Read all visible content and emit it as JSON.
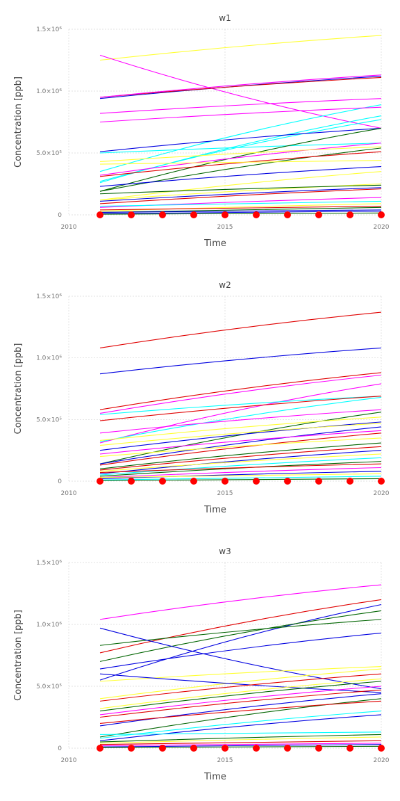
{
  "colors": [
    "#0000e0",
    "#ffff33",
    "#ff00ff",
    "#00ffff",
    "#006400",
    "#e00000"
  ],
  "marker_color": "#ff0000",
  "chart_data": [
    {
      "type": "line",
      "title": "w1",
      "xlabel": "Time",
      "ylabel": "Concentration [ppb]",
      "xlim": [
        2010,
        2020
      ],
      "ylim": [
        0,
        1500000
      ],
      "x_ticks": [
        2010,
        2015,
        2020
      ],
      "y_ticks": [
        {
          "value": 0,
          "label": "0"
        },
        {
          "value": 500000,
          "label": "5.0×10⁵"
        },
        {
          "value": 1000000,
          "label": "1.0×10⁶"
        },
        {
          "value": 1500000,
          "label": "1.5×10⁶"
        }
      ],
      "markers": {
        "x": [
          2011,
          2012,
          2013,
          2014,
          2015,
          2016,
          2017,
          2018,
          2019,
          2020
        ],
        "y": 0
      },
      "series": [
        {
          "color_index": 1,
          "values": [
            1250000,
            1450000
          ]
        },
        {
          "color_index": 2,
          "values": [
            1290000,
            700000
          ]
        },
        {
          "color_index": 0,
          "values": [
            940000,
            1120000
          ]
        },
        {
          "color_index": 5,
          "values": [
            950000,
            1110000
          ]
        },
        {
          "color_index": 2,
          "values": [
            950000,
            1130000
          ]
        },
        {
          "color_index": 2,
          "values": [
            820000,
            940000
          ]
        },
        {
          "color_index": 3,
          "values": [
            350000,
            890000
          ]
        },
        {
          "color_index": 2,
          "values": [
            750000,
            870000
          ]
        },
        {
          "color_index": 3,
          "values": [
            260000,
            800000
          ]
        },
        {
          "color_index": 3,
          "values": [
            270000,
            770000
          ]
        },
        {
          "color_index": 0,
          "values": [
            510000,
            700000
          ]
        },
        {
          "color_index": 3,
          "values": [
            500000,
            580000
          ]
        },
        {
          "color_index": 4,
          "values": [
            190000,
            700000
          ]
        },
        {
          "color_index": 2,
          "values": [
            320000,
            580000
          ]
        },
        {
          "color_index": 1,
          "values": [
            430000,
            550000
          ]
        },
        {
          "color_index": 4,
          "values": [
            190000,
            540000
          ]
        },
        {
          "color_index": 5,
          "values": [
            310000,
            510000
          ]
        },
        {
          "color_index": 1,
          "values": [
            410000,
            440000
          ]
        },
        {
          "color_index": 0,
          "values": [
            230000,
            390000
          ]
        },
        {
          "color_index": 1,
          "values": [
            120000,
            350000
          ]
        },
        {
          "color_index": 1,
          "values": [
            120000,
            250000
          ]
        },
        {
          "color_index": 4,
          "values": [
            170000,
            240000
          ]
        },
        {
          "color_index": 5,
          "values": [
            90000,
            210000
          ]
        },
        {
          "color_index": 0,
          "values": [
            110000,
            220000
          ]
        },
        {
          "color_index": 2,
          "values": [
            60000,
            140000
          ]
        },
        {
          "color_index": 3,
          "values": [
            70000,
            110000
          ]
        },
        {
          "color_index": 1,
          "values": [
            30000,
            90000
          ]
        },
        {
          "color_index": 4,
          "values": [
            20000,
            60000
          ]
        },
        {
          "color_index": 5,
          "values": [
            40000,
            70000
          ]
        },
        {
          "color_index": 0,
          "values": [
            20000,
            40000
          ]
        },
        {
          "color_index": 0,
          "values": [
            10000,
            30000
          ]
        },
        {
          "color_index": 4,
          "values": [
            5000,
            15000
          ]
        }
      ]
    },
    {
      "type": "line",
      "title": "w2",
      "xlabel": "Time",
      "ylabel": "Concentration [ppb]",
      "xlim": [
        2010,
        2020
      ],
      "ylim": [
        0,
        1500000
      ],
      "x_ticks": [
        2010,
        2015,
        2020
      ],
      "y_ticks": [
        {
          "value": 0,
          "label": "0"
        },
        {
          "value": 500000,
          "label": "5.0×10⁵"
        },
        {
          "value": 1000000,
          "label": "1.0×10⁶"
        },
        {
          "value": 1500000,
          "label": "1.5×10⁶"
        }
      ],
      "markers": {
        "x": [
          2011,
          2012,
          2013,
          2014,
          2015,
          2016,
          2017,
          2018,
          2019,
          2020
        ],
        "y": 0
      },
      "series": [
        {
          "color_index": 5,
          "values": [
            1080000,
            1370000
          ]
        },
        {
          "color_index": 0,
          "values": [
            870000,
            1080000
          ]
        },
        {
          "color_index": 5,
          "values": [
            580000,
            880000
          ]
        },
        {
          "color_index": 2,
          "values": [
            550000,
            860000
          ]
        },
        {
          "color_index": 2,
          "values": [
            310000,
            790000
          ]
        },
        {
          "color_index": 3,
          "values": [
            540000,
            690000
          ]
        },
        {
          "color_index": 5,
          "values": [
            490000,
            690000
          ]
        },
        {
          "color_index": 3,
          "values": [
            320000,
            680000
          ]
        },
        {
          "color_index": 2,
          "values": [
            390000,
            580000
          ]
        },
        {
          "color_index": 4,
          "values": [
            140000,
            560000
          ]
        },
        {
          "color_index": 1,
          "values": [
            330000,
            520000
          ]
        },
        {
          "color_index": 0,
          "values": [
            250000,
            480000
          ]
        },
        {
          "color_index": 1,
          "values": [
            290000,
            470000
          ]
        },
        {
          "color_index": 0,
          "values": [
            140000,
            440000
          ]
        },
        {
          "color_index": 2,
          "values": [
            220000,
            410000
          ]
        },
        {
          "color_index": 5,
          "values": [
            130000,
            390000
          ]
        },
        {
          "color_index": 1,
          "values": [
            200000,
            350000
          ]
        },
        {
          "color_index": 4,
          "values": [
            100000,
            310000
          ]
        },
        {
          "color_index": 5,
          "values": [
            90000,
            280000
          ]
        },
        {
          "color_index": 0,
          "values": [
            60000,
            250000
          ]
        },
        {
          "color_index": 1,
          "values": [
            80000,
            220000
          ]
        },
        {
          "color_index": 3,
          "values": [
            50000,
            190000
          ]
        },
        {
          "color_index": 4,
          "values": [
            40000,
            160000
          ]
        },
        {
          "color_index": 5,
          "values": [
            70000,
            140000
          ]
        },
        {
          "color_index": 2,
          "values": [
            30000,
            110000
          ]
        },
        {
          "color_index": 0,
          "values": [
            20000,
            80000
          ]
        },
        {
          "color_index": 1,
          "values": [
            30000,
            60000
          ]
        },
        {
          "color_index": 3,
          "values": [
            10000,
            40000
          ]
        },
        {
          "color_index": 4,
          "values": [
            5000,
            20000
          ]
        }
      ]
    },
    {
      "type": "line",
      "title": "w3",
      "xlabel": "Time",
      "ylabel": "Concentration [ppb]",
      "xlim": [
        2010,
        2020
      ],
      "ylim": [
        0,
        1500000
      ],
      "x_ticks": [
        2010,
        2015,
        2020
      ],
      "y_ticks": [
        {
          "value": 0,
          "label": "0"
        },
        {
          "value": 500000,
          "label": "5.0×10⁵"
        },
        {
          "value": 1000000,
          "label": "1.0×10⁶"
        },
        {
          "value": 1500000,
          "label": "1.5×10⁶"
        }
      ],
      "markers": {
        "x": [
          2011,
          2012,
          2013,
          2014,
          2015,
          2016,
          2017,
          2018,
          2019,
          2020
        ],
        "y": 0
      },
      "series": [
        {
          "color_index": 2,
          "values": [
            1040000,
            1320000
          ]
        },
        {
          "color_index": 5,
          "values": [
            770000,
            1200000
          ]
        },
        {
          "color_index": 0,
          "values": [
            550000,
            1160000
          ]
        },
        {
          "color_index": 4,
          "values": [
            700000,
            1110000
          ]
        },
        {
          "color_index": 4,
          "values": [
            830000,
            1040000
          ]
        },
        {
          "color_index": 0,
          "values": [
            970000,
            480000
          ]
        },
        {
          "color_index": 0,
          "values": [
            640000,
            930000
          ]
        },
        {
          "color_index": 1,
          "values": [
            540000,
            660000
          ]
        },
        {
          "color_index": 1,
          "values": [
            400000,
            640000
          ]
        },
        {
          "color_index": 0,
          "values": [
            600000,
            450000
          ]
        },
        {
          "color_index": 5,
          "values": [
            380000,
            600000
          ]
        },
        {
          "color_index": 1,
          "values": [
            320000,
            560000
          ]
        },
        {
          "color_index": 4,
          "values": [
            300000,
            540000
          ]
        },
        {
          "color_index": 2,
          "values": [
            270000,
            500000
          ]
        },
        {
          "color_index": 5,
          "values": [
            250000,
            470000
          ]
        },
        {
          "color_index": 0,
          "values": [
            180000,
            440000
          ]
        },
        {
          "color_index": 4,
          "values": [
            90000,
            400000
          ]
        },
        {
          "color_index": 5,
          "values": [
            200000,
            380000
          ]
        },
        {
          "color_index": 3,
          "values": [
            80000,
            300000
          ]
        },
        {
          "color_index": 0,
          "values": [
            60000,
            270000
          ]
        },
        {
          "color_index": 3,
          "values": [
            110000,
            130000
          ]
        },
        {
          "color_index": 4,
          "values": [
            50000,
            110000
          ]
        },
        {
          "color_index": 1,
          "values": [
            40000,
            90000
          ]
        },
        {
          "color_index": 5,
          "values": [
            30000,
            60000
          ]
        },
        {
          "color_index": 2,
          "values": [
            20000,
            40000
          ]
        },
        {
          "color_index": 0,
          "values": [
            10000,
            30000
          ]
        },
        {
          "color_index": 4,
          "values": [
            5000,
            15000
          ]
        }
      ]
    }
  ]
}
